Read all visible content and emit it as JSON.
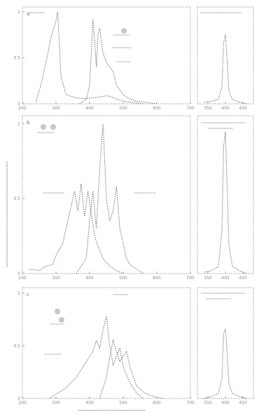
{
  "chart_data": [
    {
      "type": "line",
      "panel_label": "a",
      "xlim": [
        200,
        700
      ],
      "ylim": [
        0,
        1
      ],
      "xticks": [
        "200",
        "300",
        "400",
        "500",
        "600",
        "700"
      ],
      "yticks": [
        "0",
        "0.5",
        "1"
      ],
      "series": [
        {
          "x": [
            240,
            255,
            270,
            285,
            300,
            305,
            315,
            330,
            345,
            355,
            365,
            380,
            400,
            420,
            440,
            450,
            460,
            470,
            480,
            490,
            500,
            520,
            540,
            560
          ],
          "y": [
            0.02,
            0.2,
            0.45,
            0.72,
            0.9,
            1.0,
            0.3,
            0.1,
            0.08,
            0.07,
            0.06,
            0.06,
            0.06,
            0.07,
            0.08,
            0.09,
            0.08,
            0.07,
            0.05,
            0.04,
            0.03,
            0.02,
            0.01,
            0.0
          ]
        },
        {
          "x": [
            370,
            390,
            400,
            405,
            410,
            415,
            420,
            425,
            430,
            440,
            450,
            460,
            470,
            480,
            500,
            520,
            540,
            560,
            580,
            600
          ],
          "y": [
            0.0,
            0.05,
            0.2,
            0.55,
            0.92,
            0.7,
            0.4,
            0.75,
            0.82,
            0.55,
            0.45,
            0.4,
            0.35,
            0.2,
            0.1,
            0.05,
            0.03,
            0.02,
            0.01,
            0.0
          ]
        }
      ],
      "inset": {
        "xticks": [
          "350",
          "400",
          "450"
        ],
        "x": [
          340,
          360,
          380,
          390,
          395,
          400,
          405,
          410,
          420,
          440,
          460
        ],
        "y": [
          0.02,
          0.03,
          0.05,
          0.2,
          0.7,
          0.8,
          0.5,
          0.15,
          0.05,
          0.02,
          0.0
        ]
      }
    },
    {
      "type": "line",
      "panel_label": "b",
      "xlim": [
        200,
        700
      ],
      "ylim": [
        0,
        1
      ],
      "xticks": [
        "200",
        "300",
        "400",
        "500",
        "600",
        "700"
      ],
      "yticks": [
        "0",
        "0.5",
        "1"
      ],
      "series": [
        {
          "x": [
            220,
            250,
            270,
            290,
            300,
            320,
            340,
            355,
            365,
            375,
            385,
            395,
            405,
            415,
            425,
            440,
            460,
            480,
            500
          ],
          "y": [
            0.03,
            0.02,
            0.05,
            0.06,
            0.12,
            0.2,
            0.4,
            0.55,
            0.42,
            0.6,
            0.38,
            0.55,
            0.4,
            0.25,
            0.18,
            0.1,
            0.05,
            0.02,
            0.0
          ]
        },
        {
          "x": [
            360,
            390,
            400,
            410,
            420,
            430,
            440,
            450,
            460,
            470,
            480,
            490,
            500,
            510,
            520,
            540,
            560
          ],
          "y": [
            0.0,
            0.1,
            0.35,
            0.55,
            0.3,
            0.7,
            1.0,
            0.5,
            0.35,
            0.42,
            0.58,
            0.3,
            0.2,
            0.1,
            0.06,
            0.03,
            0.0
          ]
        }
      ],
      "inset": {
        "xticks": [
          "350",
          "400",
          "450"
        ],
        "x": [
          340,
          360,
          380,
          390,
          395,
          400,
          405,
          410,
          420,
          440,
          460
        ],
        "y": [
          0.01,
          0.02,
          0.05,
          0.3,
          0.9,
          1.0,
          0.6,
          0.2,
          0.05,
          0.02,
          0.0
        ]
      }
    },
    {
      "type": "line",
      "panel_label": "c",
      "xlim": [
        200,
        700
      ],
      "ylim": [
        0,
        1
      ],
      "xticks": [
        "200",
        "300",
        "400",
        "500",
        "600",
        "700"
      ],
      "yticks": [
        "0",
        "0.5",
        "1"
      ],
      "series": [
        {
          "x": [
            280,
            300,
            330,
            360,
            390,
            410,
            420,
            430,
            440,
            450,
            460,
            470,
            480,
            490,
            500,
            520,
            540,
            560
          ],
          "y": [
            0.0,
            0.04,
            0.1,
            0.2,
            0.35,
            0.45,
            0.55,
            0.48,
            0.65,
            0.78,
            0.5,
            0.32,
            0.4,
            0.48,
            0.3,
            0.15,
            0.05,
            0.0
          ]
        },
        {
          "x": [
            430,
            450,
            460,
            470,
            480,
            490,
            500,
            510,
            520,
            540,
            560,
            580,
            600,
            620
          ],
          "y": [
            0.0,
            0.2,
            0.4,
            0.55,
            0.45,
            0.35,
            0.4,
            0.45,
            0.3,
            0.12,
            0.06,
            0.03,
            0.01,
            0.0
          ]
        }
      ],
      "inset": {
        "xticks": [
          "350",
          "400",
          "450"
        ],
        "x": [
          340,
          360,
          380,
          390,
          395,
          400,
          405,
          410,
          420,
          440,
          460
        ],
        "y": [
          0.0,
          0.02,
          0.05,
          0.2,
          0.65,
          0.7,
          0.45,
          0.15,
          0.05,
          0.02,
          0.0
        ]
      }
    }
  ]
}
